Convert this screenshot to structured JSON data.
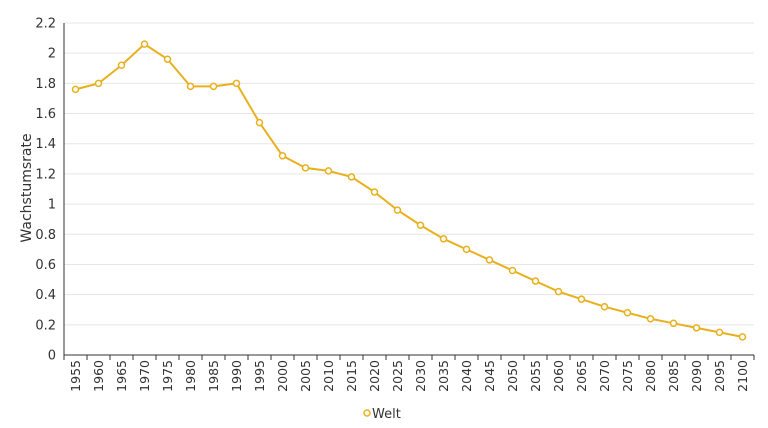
{
  "chart_data": {
    "type": "line",
    "ylabel": "Wachstumsrate",
    "ylim": [
      0,
      2.2
    ],
    "yticks": [
      "0",
      "0.2",
      "0.4",
      "0.6",
      "0.8",
      "1",
      "1.2",
      "1.4",
      "1.6",
      "1.8",
      "2",
      "2.2"
    ],
    "grid": "horizontal",
    "legend_position": "bottom-center",
    "x": [
      "1955",
      "1960",
      "1965",
      "1970",
      "1975",
      "1980",
      "1985",
      "1990",
      "1995",
      "2000",
      "2005",
      "2010",
      "2015",
      "2020",
      "2025",
      "2030",
      "2035",
      "2040",
      "2045",
      "2050",
      "2055",
      "2060",
      "2065",
      "2070",
      "2075",
      "2080",
      "2085",
      "2090",
      "2095",
      "2100"
    ],
    "series": [
      {
        "name": "Welt",
        "color": "#e8b01c",
        "values": [
          1.76,
          1.8,
          1.92,
          2.06,
          1.96,
          1.78,
          1.78,
          1.8,
          1.54,
          1.32,
          1.24,
          1.22,
          1.18,
          1.08,
          0.96,
          0.86,
          0.77,
          0.7,
          0.63,
          0.56,
          0.49,
          0.42,
          0.37,
          0.32,
          0.28,
          0.24,
          0.21,
          0.18,
          0.15,
          0.12
        ]
      }
    ]
  }
}
